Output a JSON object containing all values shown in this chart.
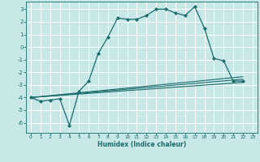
{
  "xlabel": "Humidex (Indice chaleur)",
  "bg_color": "#c8e8e8",
  "line_color": "#1a6b6b",
  "xlim": [
    -0.5,
    23.5
  ],
  "ylim": [
    -6.8,
    3.6
  ],
  "yticks": [
    -6,
    -5,
    -4,
    -3,
    -2,
    -1,
    0,
    1,
    2,
    3
  ],
  "xticks": [
    0,
    1,
    2,
    3,
    4,
    5,
    6,
    7,
    8,
    9,
    10,
    11,
    12,
    13,
    14,
    15,
    16,
    17,
    18,
    19,
    20,
    21,
    22,
    23
  ],
  "main_x": [
    0,
    1,
    2,
    3,
    4,
    5,
    6,
    7,
    8,
    9,
    10,
    11,
    12,
    13,
    14,
    15,
    16,
    17,
    18,
    19,
    20,
    21,
    22
  ],
  "main_y": [
    -4.0,
    -4.3,
    -4.2,
    -4.1,
    -6.2,
    -3.5,
    -2.7,
    -0.5,
    0.8,
    2.3,
    2.2,
    2.2,
    2.5,
    3.0,
    3.0,
    2.7,
    2.5,
    3.2,
    1.5,
    -0.9,
    -1.1,
    -2.7,
    -2.7
  ],
  "trend1_x": [
    0,
    22
  ],
  "trend1_y": [
    -4.0,
    -2.8
  ],
  "trend2_x": [
    0,
    22
  ],
  "trend2_y": [
    -4.0,
    -2.55
  ],
  "trend3_x": [
    0,
    22
  ],
  "trend3_y": [
    -4.0,
    -2.35
  ]
}
